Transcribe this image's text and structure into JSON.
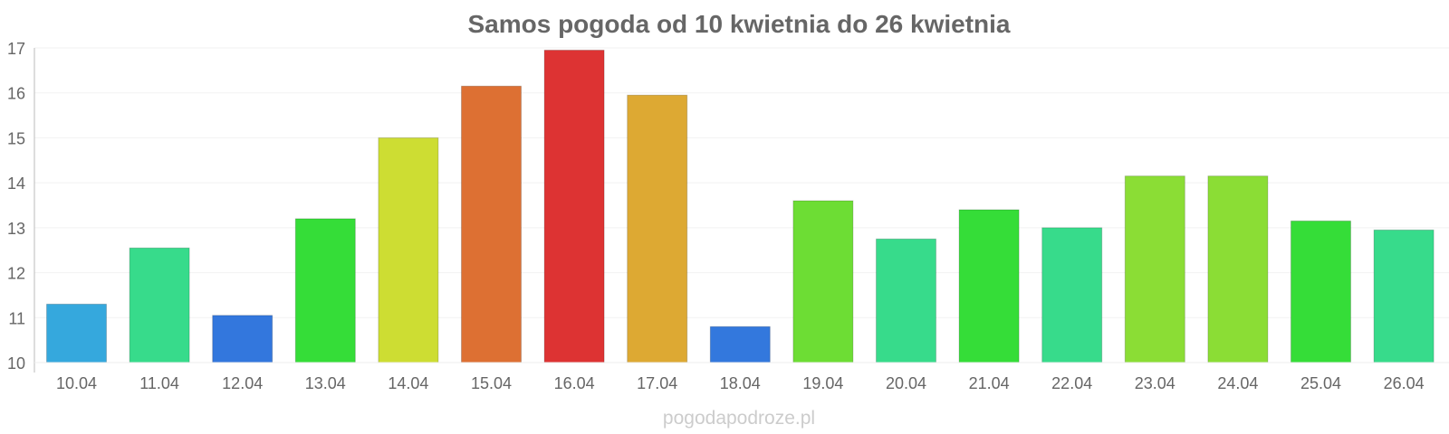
{
  "chart_data": {
    "type": "bar",
    "title": "Samos pogoda od 10 kwietnia do 26 kwietnia",
    "xlabel": "",
    "ylabel": "",
    "ylim": [
      10,
      17
    ],
    "yticks": [
      "10",
      "11",
      "12",
      "13",
      "14",
      "15",
      "16",
      "17"
    ],
    "categories": [
      "10.04",
      "11.04",
      "12.04",
      "13.04",
      "14.04",
      "15.04",
      "16.04",
      "17.04",
      "18.04",
      "19.04",
      "20.04",
      "21.04",
      "22.04",
      "23.04",
      "24.04",
      "25.04",
      "26.04"
    ],
    "values": [
      11.3,
      12.55,
      11.05,
      13.2,
      15.0,
      16.15,
      16.95,
      15.95,
      10.8,
      13.6,
      12.75,
      13.4,
      13.0,
      14.15,
      14.15,
      13.15,
      12.95
    ],
    "colors": [
      "#35a8dd",
      "#37db8b",
      "#3377dd",
      "#35dd38",
      "#cddd33",
      "#dd7033",
      "#dd3333",
      "#dda933",
      "#3378dd",
      "#6ddd34",
      "#37db8b",
      "#35dd38",
      "#37db8b",
      "#8bdd35",
      "#8bdd35",
      "#35dd38",
      "#37db8b"
    ],
    "grid": true,
    "legend": "none"
  },
  "watermark": "pogodapodroze.pl"
}
